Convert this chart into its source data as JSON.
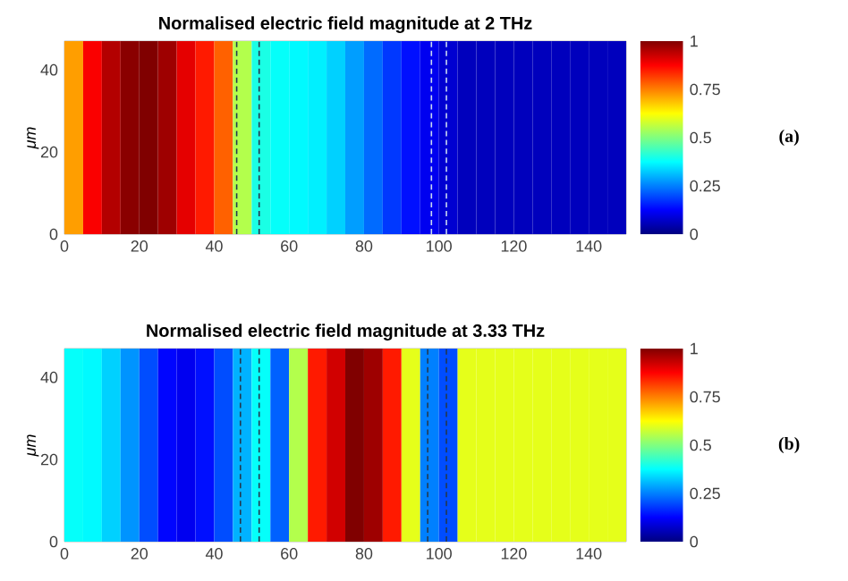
{
  "chart_data": [
    {
      "type": "heatmap",
      "title": "Normalised electric field magnitude at 2 THz",
      "ylabel": "μm",
      "annotations": [
        "(a)"
      ],
      "x": [
        2.5,
        7.5,
        12.5,
        17.5,
        22.5,
        27.5,
        32.5,
        37.5,
        42.5,
        47.5,
        52.5,
        57.5,
        62.5,
        67.5,
        72.5,
        77.5,
        82.5,
        87.5,
        92.5,
        97.5,
        102.5,
        107.5,
        112.5,
        117.5,
        122.5,
        127.5,
        132.5,
        137.5,
        142.5,
        147.5
      ],
      "cells": [
        [
          0.72,
          0.88,
          0.95,
          0.99,
          1.0,
          0.97,
          0.9,
          0.85,
          0.78,
          0.55,
          0.4,
          0.38,
          0.37,
          0.36,
          0.33,
          0.28,
          0.23,
          0.18,
          0.14,
          0.11,
          0.08,
          0.06,
          0.06,
          0.06,
          0.06,
          0.06,
          0.06,
          0.06,
          0.06,
          0.06
        ]
      ],
      "xlim": [
        0,
        150
      ],
      "xticks": [
        0,
        20,
        40,
        60,
        80,
        100,
        120,
        140
      ],
      "ylim": [
        0,
        47
      ],
      "yticks": [
        0,
        20,
        40
      ],
      "clim": [
        0,
        1
      ],
      "cticks": [
        0,
        0.25,
        0.5,
        0.75,
        1
      ],
      "ref_lines": [
        {
          "axis": "x",
          "value": 46,
          "color": "#24384f",
          "line_style": "dashed"
        },
        {
          "axis": "x",
          "value": 52,
          "color": "#24384f",
          "line_style": "dashed"
        },
        {
          "axis": "x",
          "value": 98,
          "color": "#c8d8f0",
          "line_style": "dashed"
        },
        {
          "axis": "x",
          "value": 102,
          "color": "#c8d8f0",
          "line_style": "dashed"
        }
      ]
    },
    {
      "type": "heatmap",
      "title": "Normalised electric field magnitude at 3.33 THz",
      "ylabel": "μm",
      "annotations": [
        "(b)"
      ],
      "x": [
        2.5,
        7.5,
        12.5,
        17.5,
        22.5,
        27.5,
        32.5,
        37.5,
        42.5,
        47.5,
        52.5,
        57.5,
        62.5,
        67.5,
        72.5,
        77.5,
        82.5,
        87.5,
        92.5,
        97.5,
        102.5,
        107.5,
        112.5,
        117.5,
        122.5,
        127.5,
        132.5,
        137.5,
        142.5,
        147.5
      ],
      "cells": [
        [
          0.38,
          0.37,
          0.33,
          0.27,
          0.2,
          0.13,
          0.11,
          0.14,
          0.2,
          0.3,
          0.38,
          0.22,
          0.55,
          0.85,
          0.92,
          1.0,
          0.97,
          0.85,
          0.6,
          0.25,
          0.2,
          0.6,
          0.6,
          0.6,
          0.6,
          0.6,
          0.6,
          0.6,
          0.6,
          0.6
        ]
      ],
      "xlim": [
        0,
        150
      ],
      "xticks": [
        0,
        20,
        40,
        60,
        80,
        100,
        120,
        140
      ],
      "ylim": [
        0,
        47
      ],
      "yticks": [
        0,
        20,
        40
      ],
      "clim": [
        0,
        1
      ],
      "cticks": [
        0,
        0.25,
        0.5,
        0.75,
        1
      ],
      "ref_lines": [
        {
          "axis": "x",
          "value": 47,
          "color": "#24384f",
          "line_style": "dashed"
        },
        {
          "axis": "x",
          "value": 52,
          "color": "#24384f",
          "line_style": "dashed"
        },
        {
          "axis": "x",
          "value": 97,
          "color": "#24384f",
          "line_style": "dashed"
        },
        {
          "axis": "x",
          "value": 102,
          "color": "#24384f",
          "line_style": "dashed"
        }
      ]
    }
  ]
}
